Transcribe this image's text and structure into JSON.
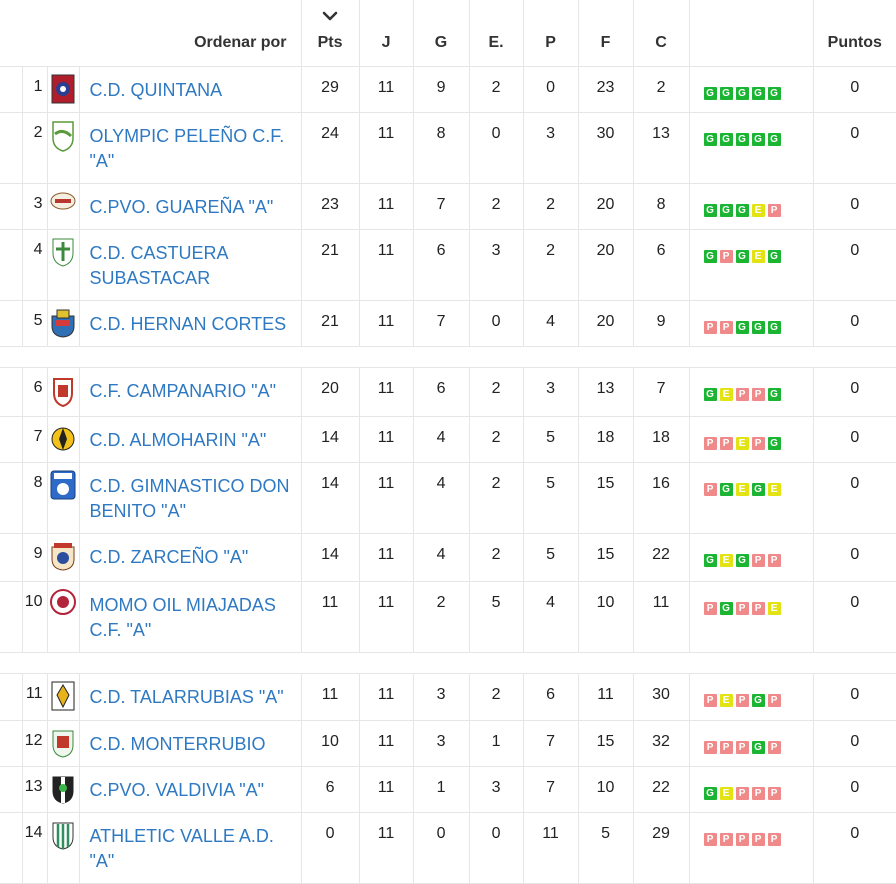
{
  "header": {
    "order_label": "Ordenar por",
    "columns": [
      "Pts",
      "J",
      "G",
      "E.",
      "P",
      "F",
      "C"
    ],
    "puntos_label": "Puntos",
    "sort_icon": "chevron-down-icon"
  },
  "form_colors": {
    "G": "#1bb533",
    "E": "#e3e314",
    "P": "#f08a8a"
  },
  "groups": [
    [
      {
        "pos": "1",
        "name": "C.D. QUINTANA",
        "pts": "29",
        "j": "11",
        "g": "9",
        "e": "2",
        "p": "0",
        "f": "23",
        "c": "2",
        "form": [
          "G",
          "G",
          "G",
          "G",
          "G"
        ],
        "puntos": "0",
        "crest": "quintana-crest-icon",
        "h": 46
      },
      {
        "pos": "2",
        "name": "OLYMPIC PELEÑO C.F. \"A\"",
        "pts": "24",
        "j": "11",
        "g": "8",
        "e": "0",
        "p": "3",
        "f": "30",
        "c": "13",
        "form": [
          "G",
          "G",
          "G",
          "G",
          "G"
        ],
        "puntos": "0",
        "crest": "olympic-crest-icon",
        "h": 71
      },
      {
        "pos": "3",
        "name": "C.PVO. GUAREÑA \"A\"",
        "pts": "23",
        "j": "11",
        "g": "7",
        "e": "2",
        "p": "2",
        "f": "20",
        "c": "8",
        "form": [
          "G",
          "G",
          "G",
          "E",
          "P"
        ],
        "puntos": "0",
        "crest": "guarena-crest-icon",
        "h": 46
      },
      {
        "pos": "4",
        "name": "C.D. CASTUERA SUBASTACAR",
        "pts": "21",
        "j": "11",
        "g": "6",
        "e": "3",
        "p": "2",
        "f": "20",
        "c": "6",
        "form": [
          "G",
          "P",
          "G",
          "E",
          "G"
        ],
        "puntos": "0",
        "crest": "castuera-crest-icon",
        "h": 71
      },
      {
        "pos": "5",
        "name": "C.D. HERNAN CORTES",
        "pts": "21",
        "j": "11",
        "g": "7",
        "e": "0",
        "p": "4",
        "f": "20",
        "c": "9",
        "form": [
          "P",
          "P",
          "G",
          "G",
          "G"
        ],
        "puntos": "0",
        "crest": "hernan-cortes-crest-icon",
        "h": 46
      }
    ],
    [
      {
        "pos": "6",
        "name": "C.F. CAMPANARIO \"A\"",
        "pts": "20",
        "j": "11",
        "g": "6",
        "e": "2",
        "p": "3",
        "f": "13",
        "c": "7",
        "form": [
          "G",
          "E",
          "P",
          "P",
          "G"
        ],
        "puntos": "0",
        "crest": "campanario-crest-icon",
        "h": 49
      },
      {
        "pos": "7",
        "name": "C.D. ALMOHARIN \"A\"",
        "pts": "14",
        "j": "11",
        "g": "4",
        "e": "2",
        "p": "5",
        "f": "18",
        "c": "18",
        "form": [
          "P",
          "P",
          "E",
          "P",
          "G"
        ],
        "puntos": "0",
        "crest": "almoharin-crest-icon",
        "h": 46
      },
      {
        "pos": "8",
        "name": "C.D. GIMNASTICO DON BENITO \"A\"",
        "pts": "14",
        "j": "11",
        "g": "4",
        "e": "2",
        "p": "5",
        "f": "15",
        "c": "16",
        "form": [
          "P",
          "G",
          "E",
          "G",
          "E"
        ],
        "puntos": "0",
        "crest": "gimnastico-crest-icon",
        "h": 71
      },
      {
        "pos": "9",
        "name": "C.D. ZARCEÑO \"A\"",
        "pts": "14",
        "j": "11",
        "g": "4",
        "e": "2",
        "p": "5",
        "f": "15",
        "c": "22",
        "form": [
          "G",
          "E",
          "G",
          "P",
          "P"
        ],
        "puntos": "0",
        "crest": "zarceno-crest-icon",
        "h": 48
      },
      {
        "pos": "10",
        "name": "MOMO OIL MIAJADAS C.F. \"A\"",
        "pts": "11",
        "j": "11",
        "g": "2",
        "e": "5",
        "p": "4",
        "f": "10",
        "c": "11",
        "form": [
          "P",
          "G",
          "P",
          "P",
          "E"
        ],
        "puntos": "0",
        "crest": "miajadas-crest-icon",
        "h": 71
      }
    ],
    [
      {
        "pos": "11",
        "name": "C.D. TALARRUBIAS \"A\"",
        "pts": "11",
        "j": "11",
        "g": "3",
        "e": "2",
        "p": "6",
        "f": "11",
        "c": "30",
        "form": [
          "P",
          "E",
          "P",
          "G",
          "P"
        ],
        "puntos": "0",
        "crest": "talarrubias-crest-icon",
        "h": 47
      },
      {
        "pos": "12",
        "name": "C.D. MONTERRUBIO",
        "pts": "10",
        "j": "11",
        "g": "3",
        "e": "1",
        "p": "7",
        "f": "15",
        "c": "32",
        "form": [
          "P",
          "P",
          "P",
          "G",
          "P"
        ],
        "puntos": "0",
        "crest": "monterrubio-crest-icon",
        "h": 46
      },
      {
        "pos": "13",
        "name": "C.PVO. VALDIVIA \"A\"",
        "pts": "6",
        "j": "11",
        "g": "1",
        "e": "3",
        "p": "7",
        "f": "10",
        "c": "22",
        "form": [
          "G",
          "E",
          "P",
          "P",
          "P"
        ],
        "puntos": "0",
        "crest": "valdivia-crest-icon",
        "h": 46
      },
      {
        "pos": "14",
        "name": "ATHLETIC VALLE A.D. \"A\"",
        "pts": "0",
        "j": "11",
        "g": "0",
        "e": "0",
        "p": "11",
        "f": "5",
        "c": "29",
        "form": [
          "P",
          "P",
          "P",
          "P",
          "P"
        ],
        "puntos": "0",
        "crest": "athletic-valle-crest-icon",
        "h": 71
      }
    ]
  ]
}
